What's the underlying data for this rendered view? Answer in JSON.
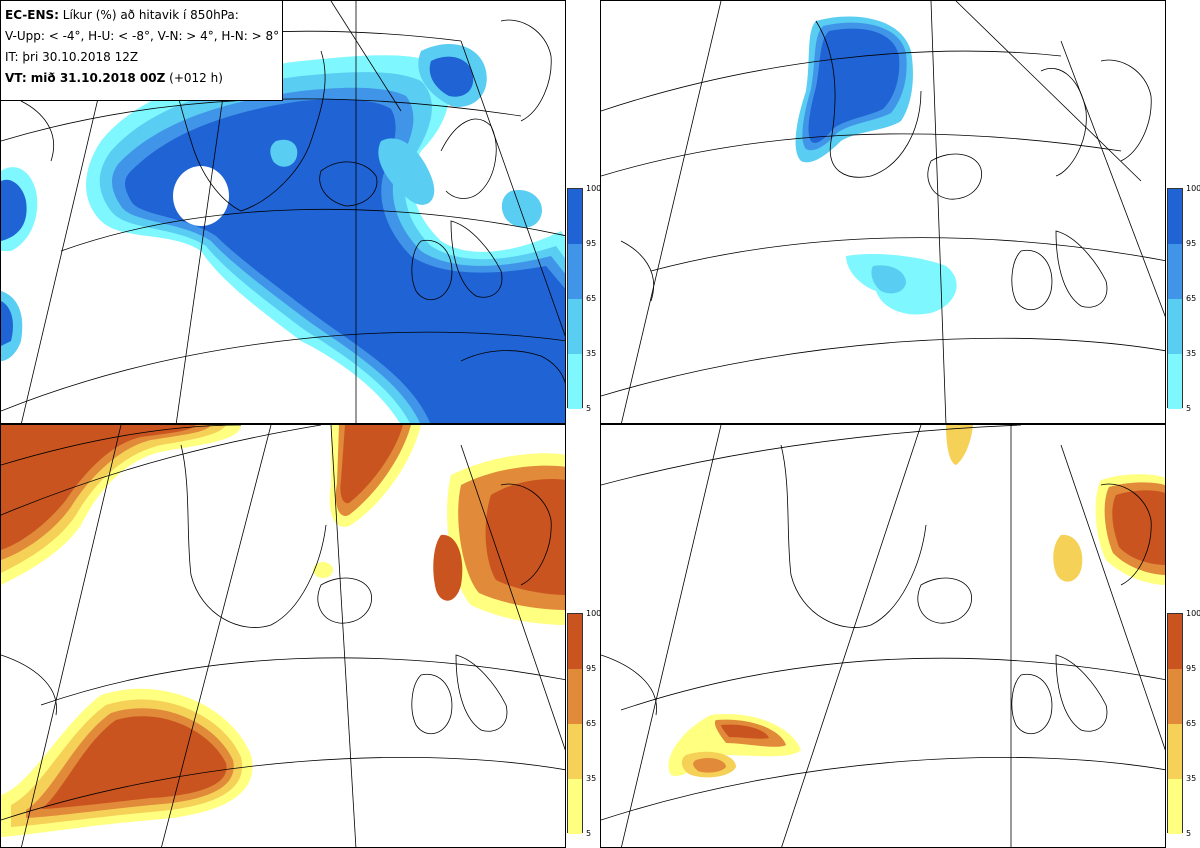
{
  "info": {
    "title_bold": "EC-ENS:",
    "title_rest": "Líkur (%) að hitavik í 850hPa:",
    "legend_line": "V-Upp: < -4°, H-U: < -8°, V-N: > 4°, H-N: > 8°",
    "it_line": "IT: þri 30.10.2018 12Z",
    "vt_bold": "VT: mið 31.10.2018 00Z",
    "vt_rest": "(+012 h)"
  },
  "colorbar_ticks": [
    "100",
    "95",
    "65",
    "35",
    "5"
  ],
  "colors": {
    "cold": [
      "#7ff7ff",
      "#59cdf2",
      "#4195e8",
      "#1f63d4"
    ],
    "warm": [
      "#ffff80",
      "#f5d158",
      "#e08a3a",
      "#c9541f"
    ],
    "land": "#000000",
    "grid": "#000000"
  },
  "panels": [
    {
      "name": "V-Upp",
      "palette": "cold"
    },
    {
      "name": "H-U",
      "palette": "cold"
    },
    {
      "name": "V-N",
      "palette": "warm"
    },
    {
      "name": "H-N",
      "palette": "warm"
    }
  ]
}
